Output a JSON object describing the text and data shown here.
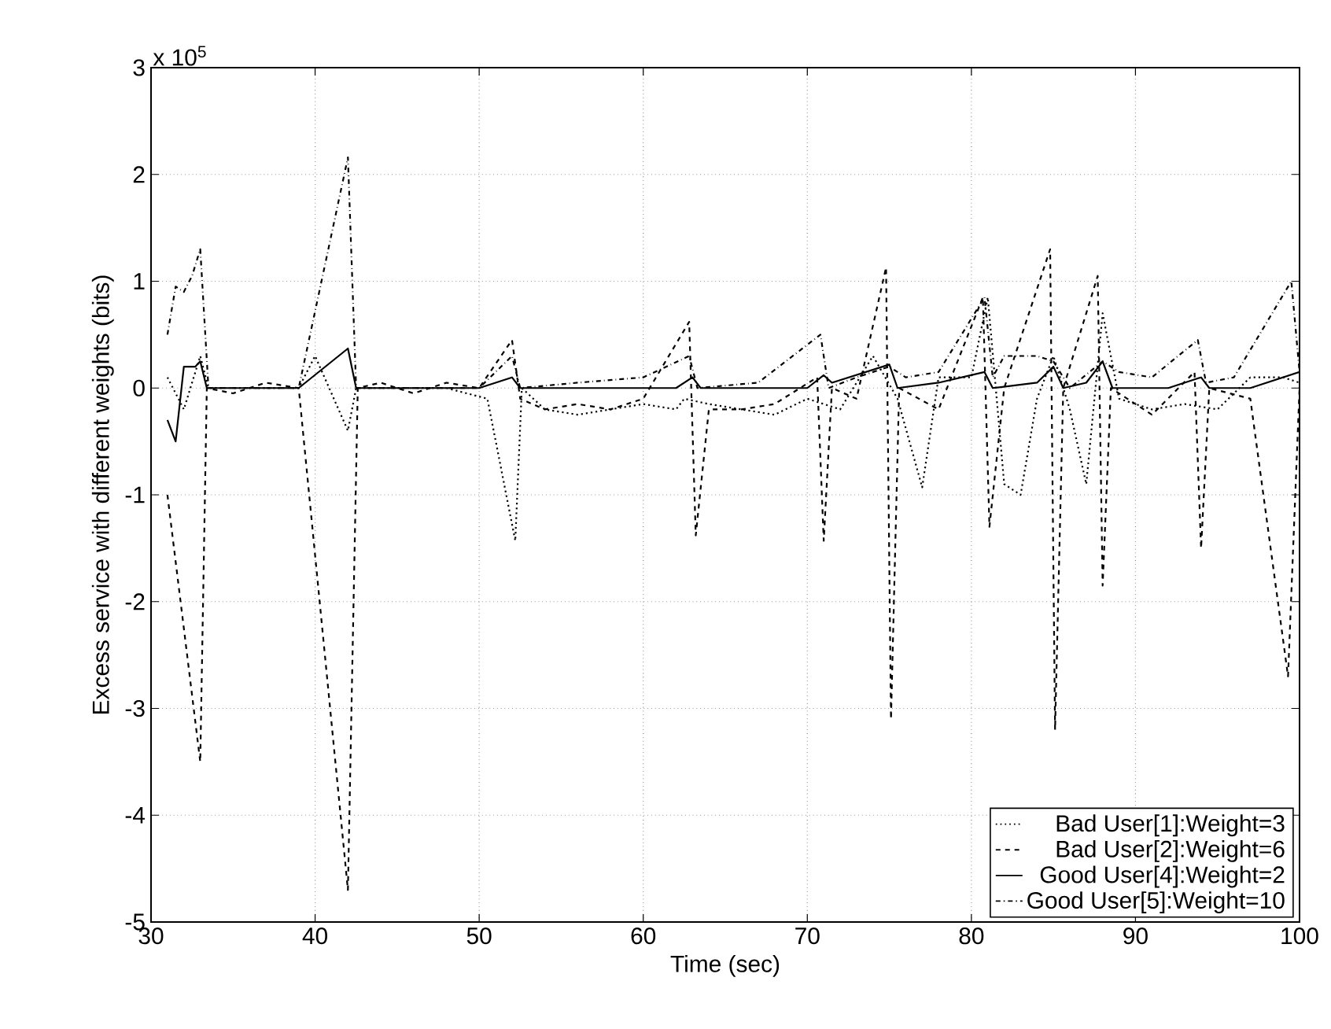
{
  "chart_data": {
    "type": "line",
    "xlabel": "Time (sec)",
    "ylabel": "Excess service with different weights (bits)",
    "xlim": [
      30,
      100
    ],
    "xticks": [
      30,
      40,
      50,
      60,
      70,
      80,
      90,
      100
    ],
    "ylim": [
      -5,
      3
    ],
    "yticks": [
      -5,
      -4,
      -3,
      -2,
      -1,
      0,
      1,
      2,
      3
    ],
    "annotations": [
      "x 10$^{5}$"
    ],
    "grid": true,
    "legend": "bottom right",
    "marker": "none",
    "series": [
      {
        "name": "Bad User[1]:Weight=3",
        "color": "#000000",
        "line_style": "dotted",
        "x": [
          31,
          32,
          33,
          33.5,
          39,
          40,
          42,
          42.5,
          48,
          50.5,
          52.2,
          52.6,
          54,
          56,
          58,
          60,
          62,
          62.5,
          64,
          66,
          68,
          70,
          72,
          74,
          75.5,
          77,
          78,
          80,
          81,
          82,
          83,
          84,
          85,
          86,
          87,
          88,
          89,
          91,
          93,
          95,
          97,
          99,
          100
        ],
        "values": [
          0.1,
          -0.2,
          0.3,
          0,
          0,
          0.3,
          -0.4,
          0,
          0,
          -0.1,
          -1.43,
          0,
          -0.2,
          -0.25,
          -0.2,
          -0.15,
          -0.2,
          -0.1,
          -0.15,
          -0.2,
          -0.25,
          -0.1,
          -0.2,
          0.3,
          -0.1,
          -0.93,
          0.1,
          0.1,
          0.85,
          -0.9,
          -1.0,
          -0.1,
          0.3,
          -0.2,
          -0.9,
          0.7,
          -0.1,
          -0.2,
          -0.15,
          -0.2,
          0.1,
          0.1,
          0.05
        ]
      },
      {
        "name": "Bad User[2]:Weight=6",
        "color": "#000000",
        "line_style": "dashed",
        "x": [
          31,
          33,
          33.4,
          35,
          37,
          39,
          42,
          42.6,
          44,
          46,
          48,
          50,
          52,
          52.5,
          54,
          56,
          58,
          60,
          62.8,
          63.2,
          64,
          66,
          68,
          70.6,
          71,
          71.5,
          73,
          74.8,
          75.1,
          75.6,
          78,
          80.7,
          81.1,
          82,
          84.8,
          85.1,
          85.6,
          87.7,
          88,
          88.5,
          91,
          93.6,
          94,
          94.5,
          97,
          99.3,
          100
        ],
        "values": [
          -1.0,
          -3.5,
          0,
          -0.05,
          0.05,
          0,
          -4.7,
          0,
          0.05,
          -0.05,
          0.05,
          0,
          0.45,
          -0.1,
          -0.2,
          -0.15,
          -0.2,
          -0.1,
          0.62,
          -1.38,
          -0.2,
          -0.2,
          -0.15,
          0.1,
          -1.43,
          0,
          -0.1,
          1.13,
          -3.1,
          0,
          -0.2,
          0.85,
          -1.3,
          0,
          1.3,
          -3.2,
          0,
          1.05,
          -1.85,
          0,
          -0.25,
          0.15,
          -1.5,
          0,
          -0.1,
          -2.7,
          0
        ]
      },
      {
        "name": "Good User[4]:Weight=2",
        "color": "#000000",
        "line_style": "solid",
        "x": [
          31,
          31.5,
          32,
          32.7,
          33,
          33.4,
          39,
          42,
          42.5,
          50,
          52,
          52.5,
          62,
          63,
          63.5,
          70,
          71,
          71.5,
          75,
          75.5,
          78,
          80.8,
          81.3,
          84,
          85,
          85.6,
          87,
          88,
          88.6,
          92,
          94,
          94.5,
          97,
          100
        ],
        "values": [
          -0.3,
          -0.5,
          0.2,
          0.2,
          0.25,
          0,
          0,
          0.37,
          0,
          0,
          0.1,
          0,
          0,
          0.1,
          0,
          0,
          0.12,
          0.05,
          0.22,
          0,
          0.05,
          0.15,
          0,
          0.05,
          0.2,
          0,
          0.05,
          0.25,
          0,
          0,
          0.1,
          0,
          0,
          0.15
        ]
      },
      {
        "name": "Good User[5]:Weight=10",
        "color": "#000000",
        "line_style": "dashdot",
        "x": [
          31,
          31.5,
          32,
          32.5,
          33,
          33.5,
          36,
          39,
          42,
          42.5,
          46,
          50,
          52,
          52.5,
          56,
          60,
          62.8,
          63.3,
          67,
          70.8,
          71.3,
          73,
          75,
          76,
          78,
          80.8,
          81.3,
          82,
          84,
          85,
          86,
          88,
          89,
          91,
          93.8,
          94.3,
          96,
          99.5,
          100
        ],
        "values": [
          0.5,
          0.95,
          0.9,
          1.05,
          1.3,
          0,
          0,
          0,
          2.16,
          0,
          0,
          0,
          0.3,
          0,
          0.05,
          0.1,
          0.3,
          0,
          0.05,
          0.5,
          0,
          0.1,
          0.2,
          0.1,
          0.15,
          0.85,
          0.1,
          0.3,
          0.3,
          0.25,
          0,
          0.25,
          0.15,
          0.1,
          0.45,
          0.05,
          0.1,
          1.0,
          0.15
        ]
      }
    ]
  }
}
